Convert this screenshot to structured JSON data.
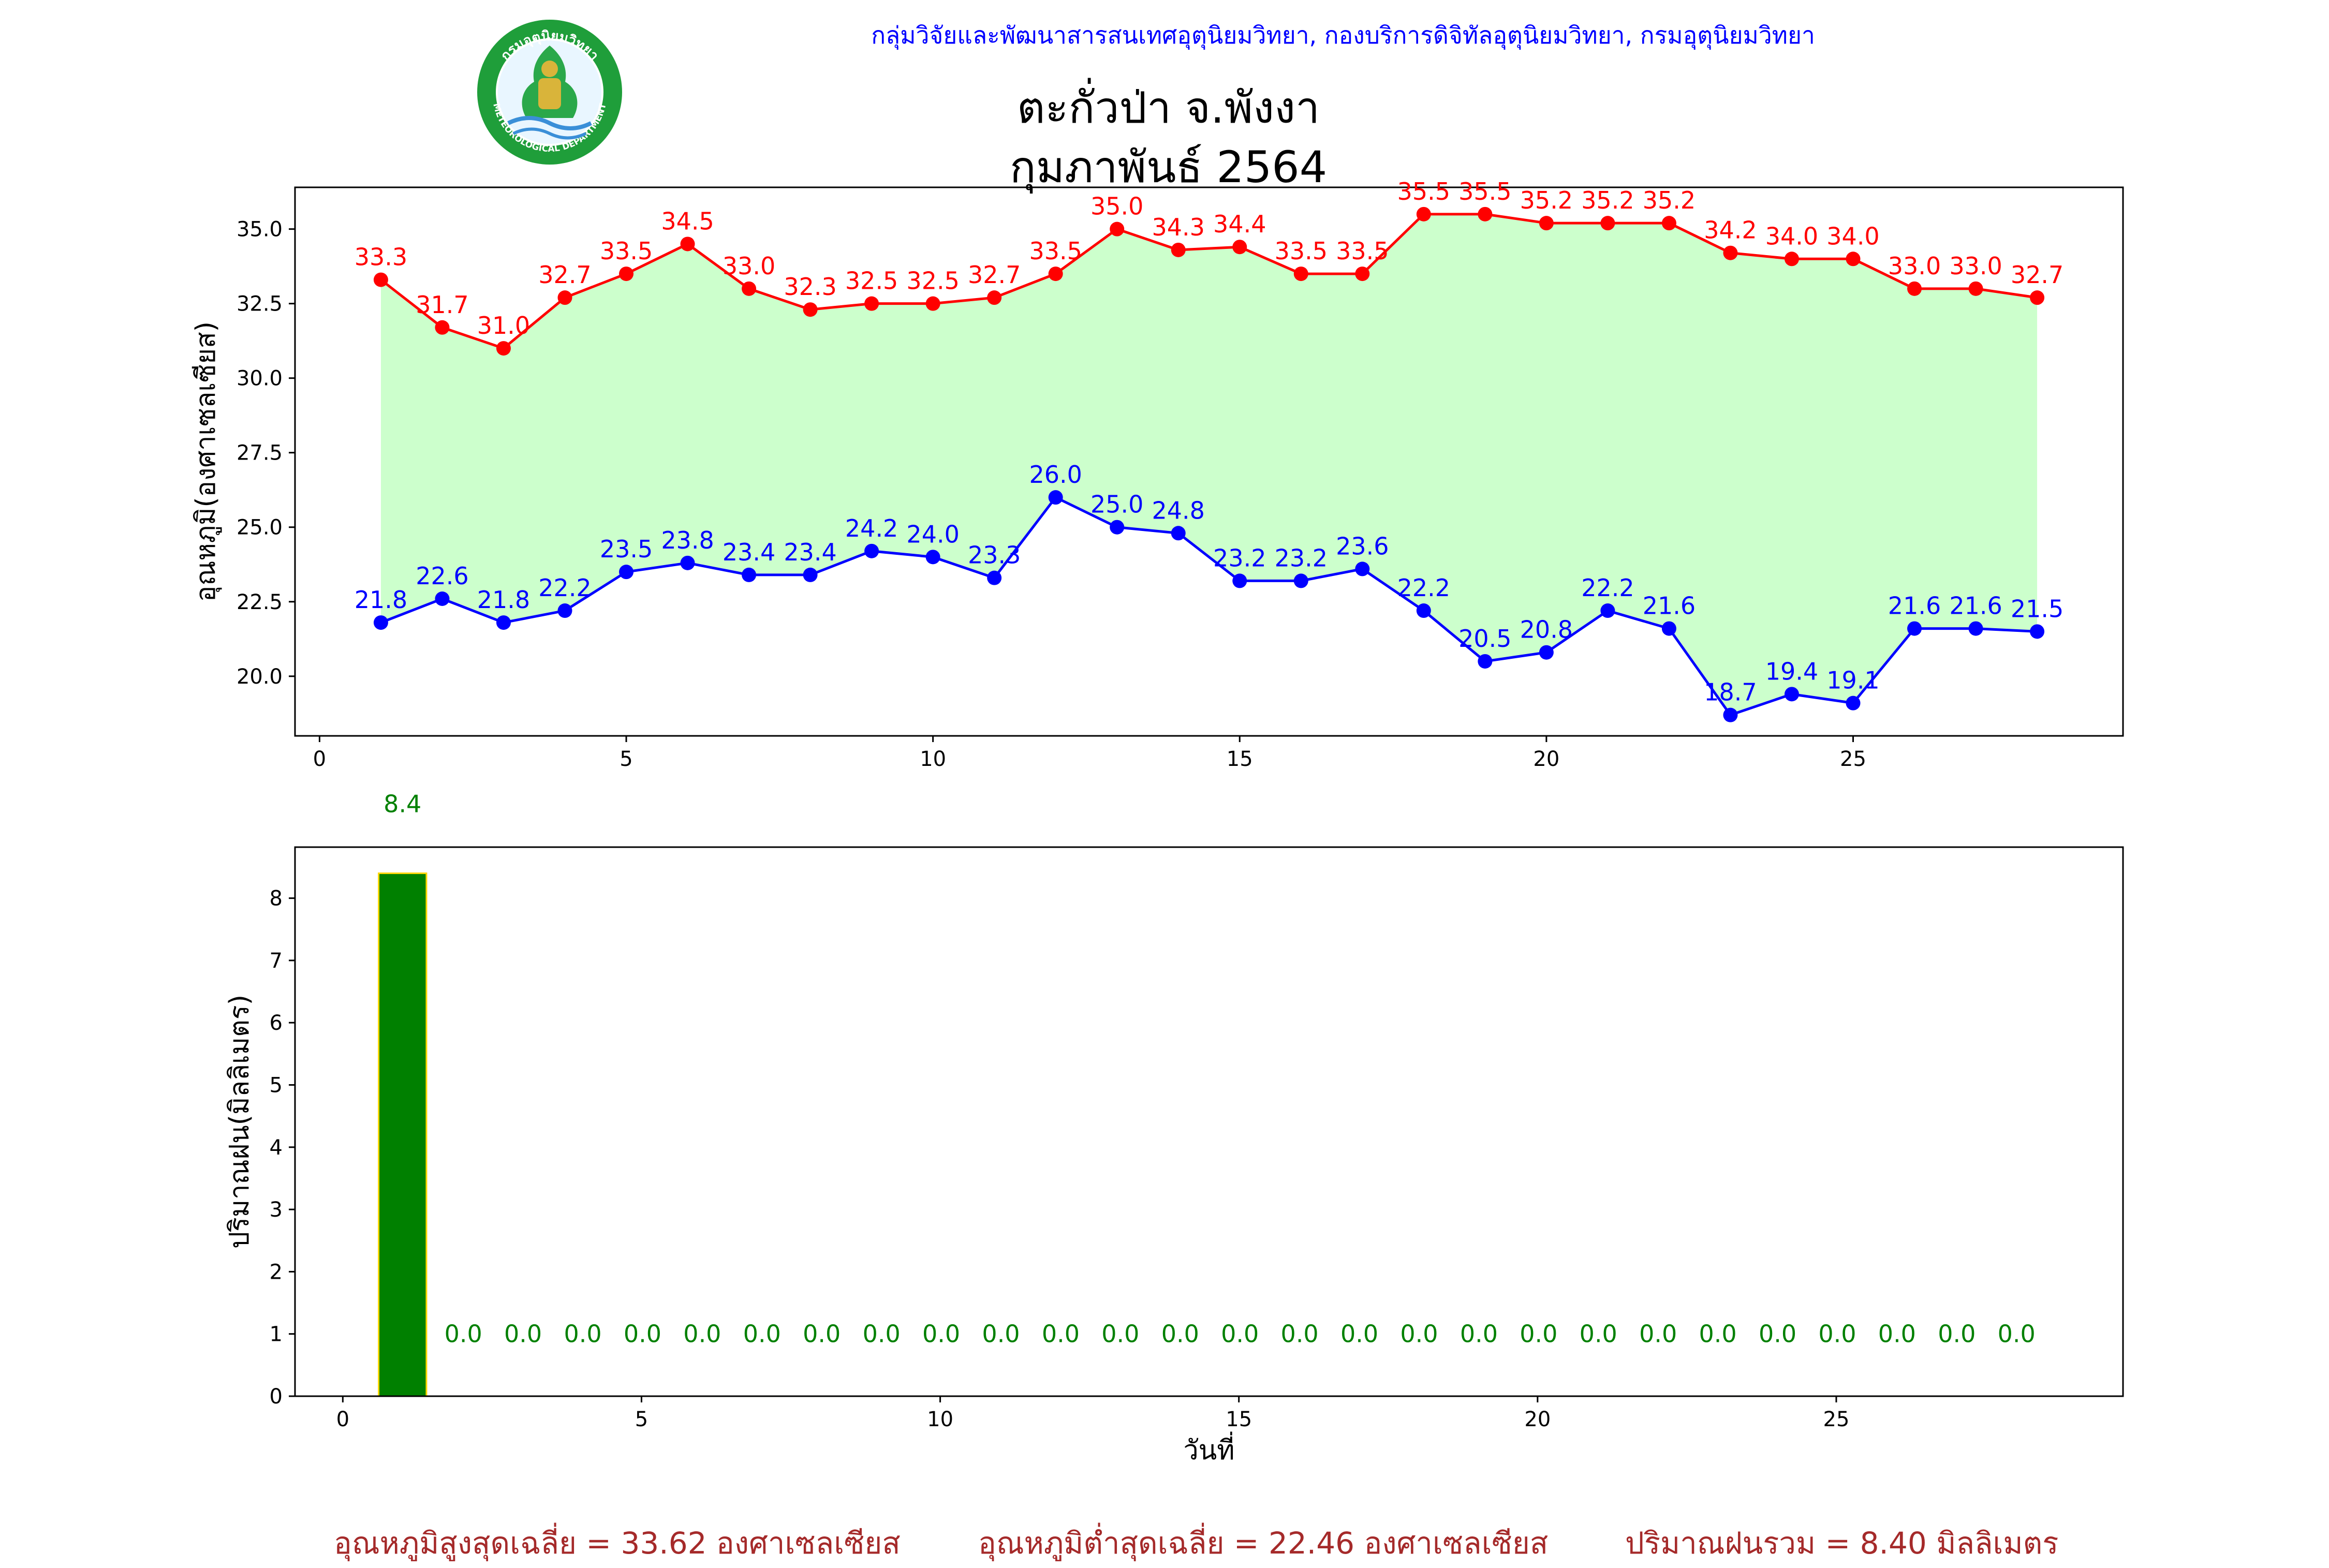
{
  "header": {
    "agency": "กลุ่มวิจัยและพัฒนาสารสนเทศอุตุนิยมวิทยา, กองบริการดิจิทัลอุตุนิยมวิทยา, กรมอุตุนิยมวิทยา",
    "station": "ตะกั่วป่า จ.พังงา",
    "period": "กุมภาพันธ์ 2564",
    "logo_text_top": "กรมอุตุนิยมวิทยา",
    "logo_text_bottom": "METEOROLOGICAL DEPARTMENT"
  },
  "chart_data": [
    {
      "type": "line",
      "ylabel": "อุณหภูมิ(องศาเซลเซียส)",
      "xlabel": "",
      "x": [
        1,
        2,
        3,
        4,
        5,
        6,
        7,
        8,
        9,
        10,
        11,
        12,
        13,
        14,
        15,
        16,
        17,
        18,
        19,
        20,
        21,
        22,
        23,
        24,
        25,
        26,
        27,
        28
      ],
      "series": [
        {
          "values": [
            33.3,
            31.7,
            31.0,
            32.7,
            33.5,
            34.5,
            33.0,
            32.3,
            32.5,
            32.5,
            32.7,
            33.5,
            35.0,
            34.3,
            34.4,
            33.5,
            33.5,
            35.5,
            35.5,
            35.2,
            35.2,
            35.2,
            34.2,
            34.0,
            34.0,
            33.0,
            33.0,
            32.7
          ]
        },
        {
          "values": [
            21.8,
            22.6,
            21.8,
            22.2,
            23.5,
            23.8,
            23.4,
            23.4,
            24.2,
            24.0,
            23.3,
            26.0,
            25.0,
            24.8,
            23.2,
            23.2,
            23.6,
            22.2,
            20.5,
            20.8,
            22.2,
            21.6,
            18.7,
            19.4,
            19.1,
            21.6,
            21.6,
            21.5
          ]
        }
      ],
      "xlim": [
        -0.4,
        29.4
      ],
      "ylim": [
        18.0,
        36.4
      ],
      "xticks": [
        0,
        5,
        10,
        15,
        20,
        25
      ],
      "yticks": [
        "20.0",
        "22.5",
        "25.0",
        "27.5",
        "30.0",
        "32.5",
        "35.0"
      ],
      "grid": false,
      "colors": {
        "max": "#ff0000",
        "min": "#0000ff",
        "fill": "#ccffcc"
      }
    },
    {
      "type": "bar",
      "ylabel": "ปริมาณฝน(มิลลิเมตร)",
      "xlabel": "วันที่",
      "x": [
        1,
        2,
        3,
        4,
        5,
        6,
        7,
        8,
        9,
        10,
        11,
        12,
        13,
        14,
        15,
        16,
        17,
        18,
        19,
        20,
        21,
        22,
        23,
        24,
        25,
        26,
        27,
        28
      ],
      "values": [
        8.4,
        0.0,
        0.0,
        0.0,
        0.0,
        0.0,
        0.0,
        0.0,
        0.0,
        0.0,
        0.0,
        0.0,
        0.0,
        0.0,
        0.0,
        0.0,
        0.0,
        0.0,
        0.0,
        0.0,
        0.0,
        0.0,
        0.0,
        0.0,
        0.0,
        0.0,
        0.0,
        0.0
      ],
      "xlim": [
        -0.8,
        29.8
      ],
      "ylim": [
        0,
        8.82
      ],
      "xticks": [
        0,
        5,
        10,
        15,
        20,
        25
      ],
      "yticks": [
        0,
        1,
        2,
        3,
        4,
        5,
        6,
        7,
        8
      ],
      "grid": false,
      "colors": {
        "bar": "#008000",
        "edge": "#ffd700",
        "label": "#008000"
      }
    }
  ],
  "footer": {
    "avg_max": "อุณหภูมิสูงสุดเฉลี่ย = 33.62 องศาเซลเซียส",
    "avg_min": "อุณหภูมิต่ำสุดเฉลี่ย = 22.46 องศาเซลเซียส",
    "total_rain": "ปริมาณฝนรวม = 8.40 มิลลิเมตร"
  }
}
